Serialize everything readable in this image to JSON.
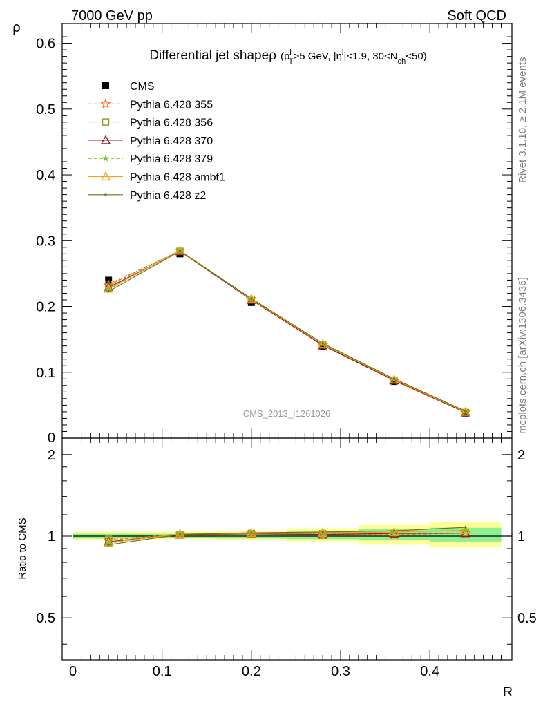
{
  "header": {
    "left": "7000 GeV pp",
    "right": "Soft QCD"
  },
  "side_labels": {
    "rivet": "Rivet 3.1.10, ≥ 2.1M events",
    "mcplots": "mcplots.cern.ch [arXiv:1306.3436]"
  },
  "watermark": "CMS_2013_I1261026",
  "colors": {
    "CMS": "#000000",
    "p355": "#ff6a21",
    "p356": "#7f9f1f",
    "p370": "#99141e",
    "p379": "#79c42a",
    "ambt1": "#f5a51d",
    "z2": "#6f6f1a",
    "band_inner": "#8ff08f",
    "band_outer": "#ffff99"
  },
  "chart_data": [
    {
      "type": "line",
      "title": "Differential jet shape ρ (p_T^j > 5 GeV, |η^j| < 1.9, 30 < N_ch < 50)",
      "title_parts": {
        "main": "Differential jet shape",
        "rho": "ρ",
        "p": "(p",
        "p_sup": "j",
        "p_sub": "T",
        "mid": ">5 GeV, |η",
        "eta_sup": "j",
        "mid2": "|<1.9, 30<N",
        "n_sub": "ch",
        "end": "<50)"
      },
      "ylabel": "ρ",
      "xlim": [
        -0.012,
        0.492
      ],
      "ylim": [
        0,
        0.63
      ],
      "yticks": [
        0.1,
        0.2,
        0.3,
        0.4,
        0.5,
        0.6
      ],
      "ytick_labels": [
        "0.1",
        "0.2",
        "0.3",
        "0.4",
        "0.5",
        "0.6"
      ],
      "y0_label": "0",
      "grid": false,
      "legend_position": "top-left",
      "x": [
        0.04,
        0.12,
        0.2,
        0.28,
        0.36,
        0.44
      ],
      "series": [
        {
          "name": "CMS",
          "values": [
            0.24,
            0.28,
            0.206,
            0.139,
            0.086,
            0.038
          ]
        },
        {
          "name": "Pythia 6.428 355",
          "values": [
            0.232,
            0.285,
            0.211,
            0.141,
            0.087,
            0.039
          ]
        },
        {
          "name": "Pythia 6.428 356",
          "values": [
            0.234,
            0.284,
            0.211,
            0.142,
            0.088,
            0.039
          ]
        },
        {
          "name": "Pythia 6.428 370",
          "values": [
            0.229,
            0.284,
            0.21,
            0.141,
            0.088,
            0.039
          ]
        },
        {
          "name": "Pythia 6.428 379",
          "values": [
            0.226,
            0.285,
            0.212,
            0.143,
            0.089,
            0.04
          ]
        },
        {
          "name": "Pythia 6.428 ambt1",
          "values": [
            0.227,
            0.285,
            0.211,
            0.143,
            0.089,
            0.04
          ]
        },
        {
          "name": "Pythia 6.428 z2",
          "values": [
            0.223,
            0.284,
            0.212,
            0.144,
            0.09,
            0.041
          ]
        }
      ]
    },
    {
      "type": "line",
      "xlabel": "R",
      "ylabel": "Ratio to CMS",
      "xlim": [
        -0.012,
        0.492
      ],
      "ylim": [
        0.35,
        2.3
      ],
      "log_y": true,
      "yticks": [
        0.5,
        1,
        2
      ],
      "ytick_labels": [
        "0.5",
        "1",
        "2"
      ],
      "xticks": [
        0,
        0.1,
        0.2,
        0.3,
        0.4
      ],
      "xtick_labels": [
        "0",
        "0.1",
        "0.2",
        "0.3",
        "0.4"
      ],
      "x": [
        0.04,
        0.12,
        0.2,
        0.28,
        0.36,
        0.44
      ],
      "bin_edges": [
        0.0,
        0.08,
        0.16,
        0.24,
        0.32,
        0.4,
        0.48
      ],
      "band_inner": [
        [
          0.98,
          1.02
        ],
        [
          0.985,
          1.02
        ],
        [
          0.98,
          1.025
        ],
        [
          0.975,
          1.04
        ],
        [
          0.965,
          1.06
        ],
        [
          0.955,
          1.075
        ]
      ],
      "band_outer": [
        [
          0.965,
          1.04
        ],
        [
          0.975,
          1.04
        ],
        [
          0.965,
          1.045
        ],
        [
          0.955,
          1.07
        ],
        [
          0.93,
          1.1
        ],
        [
          0.91,
          1.13
        ]
      ],
      "series": [
        {
          "name": "Pythia 6.428 355",
          "values": [
            0.966,
            1.018,
            1.024,
            1.014,
            1.012,
            1.026
          ]
        },
        {
          "name": "Pythia 6.428 356",
          "values": [
            0.975,
            1.014,
            1.024,
            1.022,
            1.023,
            1.026
          ]
        },
        {
          "name": "Pythia 6.428 370",
          "values": [
            0.954,
            1.014,
            1.019,
            1.014,
            1.023,
            1.026
          ]
        },
        {
          "name": "Pythia 6.428 379",
          "values": [
            0.942,
            1.018,
            1.029,
            1.029,
            1.035,
            1.053
          ]
        },
        {
          "name": "Pythia 6.428 ambt1",
          "values": [
            0.946,
            1.018,
            1.024,
            1.029,
            1.035,
            1.053
          ]
        },
        {
          "name": "Pythia 6.428 z2",
          "values": [
            0.929,
            1.014,
            1.029,
            1.036,
            1.047,
            1.079
          ]
        }
      ]
    }
  ]
}
